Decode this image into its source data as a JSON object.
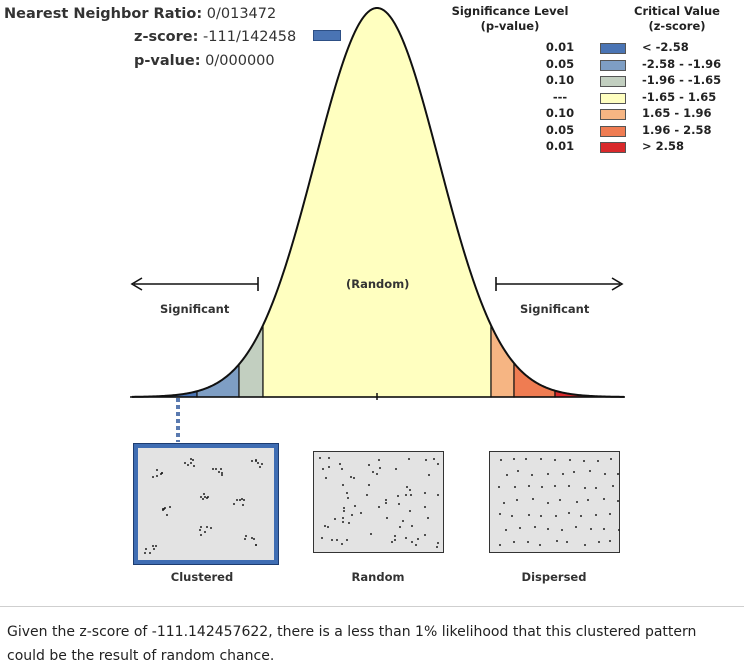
{
  "stats": {
    "nn_ratio_label": "Nearest Neighbor Ratio:",
    "nn_ratio_value": "0/013472",
    "zscore_label": "z-score:",
    "zscore_value": "-111/142458",
    "pvalue_label": "p-value:",
    "pvalue_value": "0/000000"
  },
  "legend": {
    "p_header_line1": "Significance Level",
    "p_header_line2": "(p-value)",
    "z_header_line1": "Critical Value",
    "z_header_line2": "(z-score)",
    "rows": [
      {
        "p": "0.01",
        "z": "< -2.58",
        "color": "#4a74b4"
      },
      {
        "p": "0.05",
        "z": "-2.58 - -1.96",
        "color": "#7e9ec4"
      },
      {
        "p": "0.10",
        "z": "-1.96 - -1.65",
        "color": "#c2cfc0"
      },
      {
        "p": "---",
        "z": "-1.65 - 1.65",
        "color": "#ffffc0"
      },
      {
        "p": "0.10",
        "z": "1.65 - 1.96",
        "color": "#f6b583"
      },
      {
        "p": "0.05",
        "z": "1.96 - 2.58",
        "color": "#ef7c52"
      },
      {
        "p": "0.01",
        "z": "> 2.58",
        "color": "#d9292b"
      }
    ]
  },
  "curve": {
    "random_label": "(Random)",
    "left_label": "Significant",
    "right_label": "Significant"
  },
  "patterns": {
    "clustered": "Clustered",
    "random": "Random",
    "dispersed": "Dispersed"
  },
  "conclusion": "Given the z-score of -111.142457622, there is a less than 1% likelihood that this clustered pattern could be the result of random chance."
}
